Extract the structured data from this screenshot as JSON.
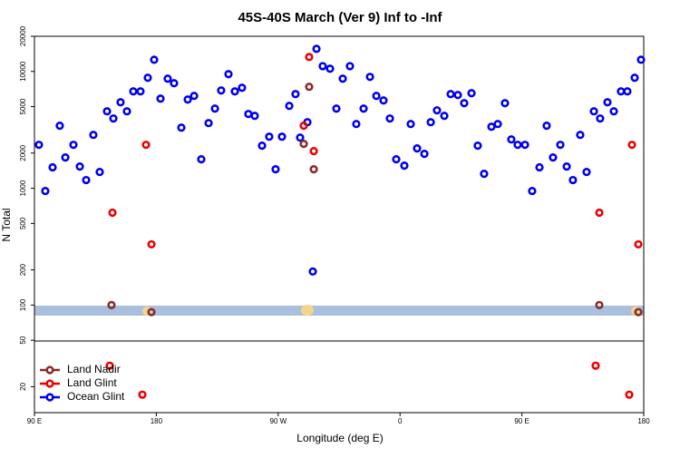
{
  "chart_data": {
    "type": "scatter",
    "title": "45S-40S March (Ver 9)   Inf to -Inf",
    "x_label": "Longitude (deg E)",
    "y_label": "N Total",
    "log_y": true,
    "legend": "bottom-left",
    "xlim": [
      90,
      540
    ],
    "ylim": [
      12,
      20000
    ],
    "xticks": [
      {
        "value": 90,
        "label": "90 E"
      },
      180,
      {
        "value": 270,
        "label": "90 W"
      },
      {
        "value": 360,
        "label": "0"
      },
      {
        "value": 450,
        "label": "90 E"
      },
      {
        "value": 540,
        "label": "180"
      }
    ],
    "yticks": [
      20000,
      10000,
      5000,
      2000,
      1000,
      500,
      200,
      100,
      50,
      20
    ],
    "series": [
      {
        "name": "Land Nadir",
        "color": "#8b2a2a",
        "x": [
          146.9,
          176.4,
          288.9,
          292.9,
          296.3,
          507.2,
          536.0
        ],
        "values": [
          100,
          87,
          2400,
          7390,
          1455,
          100,
          87
        ]
      },
      {
        "name": "Land Glint",
        "color": "#ee0000",
        "x": [
          147.6,
          172.4,
          176.4,
          288.9,
          292.9,
          296.3,
          507.2,
          531.3,
          536.0,
          145.6,
          169.7,
          504.5,
          529.3
        ],
        "values": [
          618,
          2355,
          331,
          3430,
          13300,
          2080,
          618,
          2355,
          331,
          30.3,
          17.1,
          30.3,
          17.1
        ]
      },
      {
        "name": "Ocean Glint",
        "color": "#0000ee",
        "x": [
          93.3,
          98.0,
          103.4,
          108.7,
          112.8,
          118.8,
          123.5,
          128.2,
          133.5,
          138.2,
          143.6,
          148.3,
          153.6,
          158.3,
          163.0,
          168.3,
          173.7,
          178.4,
          183.1,
          188.4,
          193.1,
          198.5,
          203.2,
          207.9,
          213.2,
          218.6,
          223.3,
          227.9,
          233.3,
          238.0,
          243.3,
          248.0,
          252.7,
          258.1,
          263.4,
          268.1,
          272.8,
          278.2,
          282.8,
          286.2,
          291.6,
          295.6,
          298.3,
          302.9,
          308.3,
          313.0,
          317.7,
          323.0,
          327.7,
          333.1,
          337.8,
          342.5,
          347.8,
          352.5,
          357.2,
          363.2,
          367.9,
          372.6,
          378.0,
          382.7,
          387.3,
          392.7,
          397.4,
          402.7,
          407.4,
          412.8,
          417.4,
          422.1,
          427.5,
          432.2,
          437.5,
          442.2,
          446.9,
          452.3,
          457.6,
          463.0,
          468.3,
          473.0,
          478.4,
          483.1,
          487.7,
          493.1,
          497.8,
          503.2,
          507.8,
          513.2,
          517.9,
          523.2,
          527.9,
          533.3,
          538.0
        ],
        "values": [
          2355,
          948,
          1510,
          3430,
          1835,
          2355,
          1535,
          1175,
          2865,
          1380,
          4560,
          3955,
          5450,
          4560,
          6750,
          6750,
          8830,
          12600,
          5850,
          8670,
          7930,
          3305,
          5750,
          6180,
          1770,
          3615,
          4810,
          6870,
          9480,
          6750,
          7250,
          4325,
          4170,
          2315,
          2765,
          1455,
          2765,
          5075,
          6400,
          2715,
          3680,
          194,
          15600,
          11100,
          10550,
          4810,
          8670,
          11100,
          3550,
          4810,
          8980,
          6180,
          5650,
          3955,
          1770,
          1563,
          3550,
          2195,
          1970,
          3680,
          4645,
          4170,
          6400,
          6285,
          5355,
          6515,
          2315,
          1330,
          3365,
          3550,
          5355,
          2620,
          2355,
          2355,
          948,
          1510,
          3430,
          1835,
          2355,
          1535,
          1175,
          2865,
          1380,
          4560,
          3955,
          5450,
          4560,
          6750,
          6750,
          8830,
          12600
        ]
      }
    ]
  }
}
